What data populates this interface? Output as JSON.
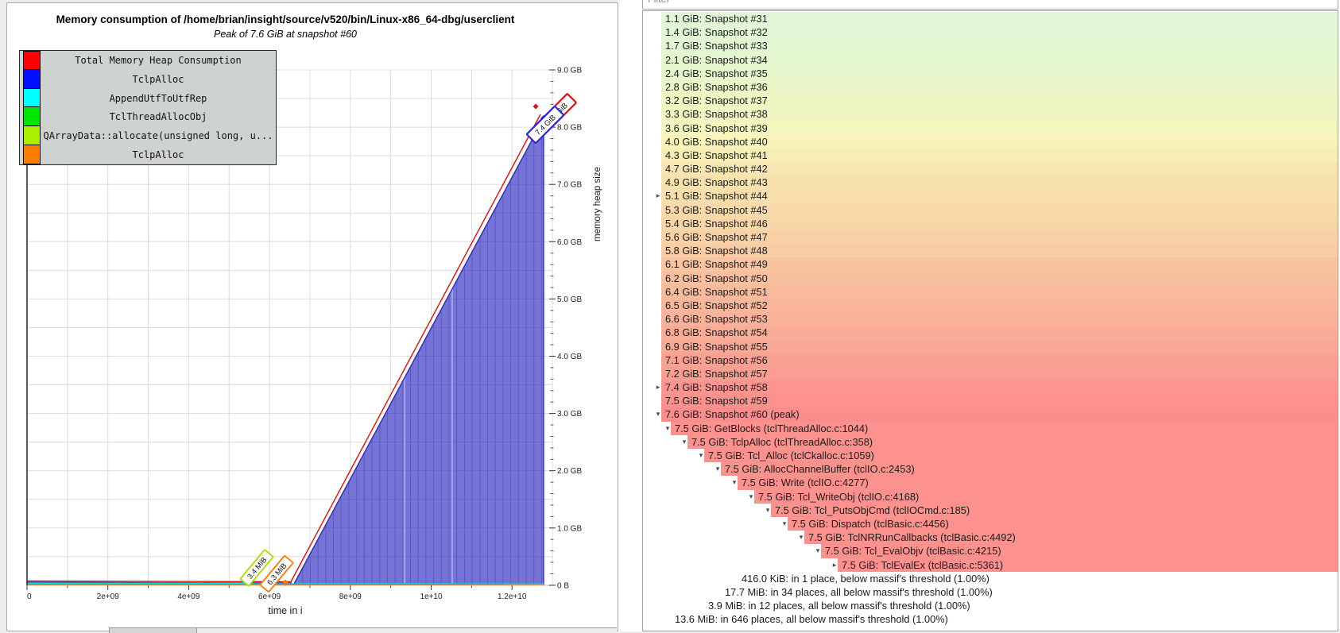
{
  "chart": {
    "title": "Memory consumption of /home/brian/insight/source/v520/bin/Linux-x86_64-dbg/userclient",
    "subtitle": "Peak of 7.6 GiB at snapshot #60",
    "x_axis": {
      "label": "time in i",
      "ticks": [
        "0",
        "2e+09",
        "4e+09",
        "6e+09",
        "8e+09",
        "1e+10",
        "1.2e+10"
      ]
    },
    "y_axis": {
      "label": "memory heap size",
      "ticks": [
        "9.0 GB",
        "8.0 GB",
        "7.0 GB",
        "6.0 GB",
        "5.0 GB",
        "4.0 GB",
        "3.0 GB",
        "2.0 GB",
        "1.0 GB",
        "0 B"
      ]
    },
    "legend": [
      {
        "label": "Total Memory Heap Consumption",
        "color": "#ff0000"
      },
      {
        "label": "TclpAlloc",
        "color": "#0010ff"
      },
      {
        "label": "AppendUtfToUtfRep",
        "color": "#00ffff"
      },
      {
        "label": "TclThreadAllocObj",
        "color": "#00e500"
      },
      {
        "label": "QArrayData::allocate(unsigned long, u...",
        "color": "#aaee00"
      },
      {
        "label": "TclpAlloc",
        "color": "#ff7d00"
      }
    ],
    "annotations": [
      {
        "text": "3.4 MiB",
        "color": "#a8e000"
      },
      {
        "text": "6.3 MiB",
        "color": "#ff7d00"
      },
      {
        "text": "7.4 GiB",
        "color": "#2828dd"
      },
      {
        "text": "7.6 GiB",
        "color": "#e01010"
      }
    ],
    "chart_data": {
      "type": "area",
      "title": "Memory consumption of /home/brian/insight/source/v520/bin/Linux-x86_64-dbg/userclient",
      "subtitle": "Peak of 7.6 GiB at snapshot #60",
      "xlabel": "time in i",
      "ylabel": "memory heap size",
      "x_ticks": [
        0,
        2000000000.0,
        4000000000.0,
        6000000000.0,
        8000000000.0,
        10000000000.0,
        12000000000.0
      ],
      "y_ticks_gb": [
        9.0,
        8.0,
        7.0,
        6.0,
        5.0,
        4.0,
        3.0,
        2.0,
        1.0,
        0
      ],
      "x_range": [
        0,
        12900000000.0
      ],
      "y_range_bytes": [
        0,
        9000000000.0
      ],
      "grid": true,
      "legend_position": "top-left",
      "peak": {
        "value": "7.6 GiB",
        "snapshot": 60
      },
      "series": [
        {
          "name": "Total Memory Heap Consumption",
          "color": "#ff0000",
          "points_approx": [
            [
              0,
              50000000.0
            ],
            [
              6500000000.0,
              60000000.0
            ],
            [
              12800000000.0,
              8160000000.0
            ]
          ]
        },
        {
          "name": "TclpAlloc",
          "color": "#0010ff",
          "filled": true,
          "points_approx": [
            [
              0,
              40000000.0
            ],
            [
              6500000000.0,
              50000000.0
            ],
            [
              12800000000.0,
              8100000000.0
            ]
          ]
        },
        {
          "name": "AppendUtfToUtfRep",
          "color": "#00ffff",
          "points_approx": [
            [
              0,
              15000000.0
            ],
            [
              5500000000.0,
              20000000.0
            ],
            [
              12800000000.0,
              15000000.0
            ]
          ],
          "marker_label": null
        },
        {
          "name": "TclThreadAllocObj",
          "color": "#00e500",
          "points_approx": [
            [
              0,
              8000000.0
            ],
            [
              12800000000.0,
              8000000.0
            ]
          ]
        },
        {
          "name": "QArrayData::allocate(unsigned long, u...",
          "color": "#aaee00",
          "points_approx": [
            [
              5800000000.0,
              3570000.0
            ]
          ],
          "marker_label": "3.4 MiB"
        },
        {
          "name": "TclpAlloc",
          "color": "#ff7d00",
          "points_approx": [
            [
              6200000000.0,
              6600000.0
            ]
          ],
          "marker_label": "6.3 MiB"
        }
      ]
    }
  },
  "filter": {
    "placeholder": "Filter"
  },
  "snapshot_tree": {
    "rows": [
      {
        "label": "1.1 GiB: Snapshot #31",
        "value": 1.1,
        "depth": 0,
        "arrow": "none",
        "kind": "snapshot"
      },
      {
        "label": "1.4 GiB: Snapshot #32",
        "value": 1.4,
        "depth": 0,
        "arrow": "none",
        "kind": "snapshot"
      },
      {
        "label": "1.7 GiB: Snapshot #33",
        "value": 1.7,
        "depth": 0,
        "arrow": "none",
        "kind": "snapshot"
      },
      {
        "label": "2.1 GiB: Snapshot #34",
        "value": 2.1,
        "depth": 0,
        "arrow": "none",
        "kind": "snapshot"
      },
      {
        "label": "2.4 GiB: Snapshot #35",
        "value": 2.4,
        "depth": 0,
        "arrow": "none",
        "kind": "snapshot"
      },
      {
        "label": "2.8 GiB: Snapshot #36",
        "value": 2.8,
        "depth": 0,
        "arrow": "none",
        "kind": "snapshot"
      },
      {
        "label": "3.2 GiB: Snapshot #37",
        "value": 3.2,
        "depth": 0,
        "arrow": "none",
        "kind": "snapshot"
      },
      {
        "label": "3.3 GiB: Snapshot #38",
        "value": 3.3,
        "depth": 0,
        "arrow": "none",
        "kind": "snapshot"
      },
      {
        "label": "3.6 GiB: Snapshot #39",
        "value": 3.6,
        "depth": 0,
        "arrow": "none",
        "kind": "snapshot"
      },
      {
        "label": "4.0 GiB: Snapshot #40",
        "value": 4.0,
        "depth": 0,
        "arrow": "none",
        "kind": "snapshot"
      },
      {
        "label": "4.3 GiB: Snapshot #41",
        "value": 4.3,
        "depth": 0,
        "arrow": "none",
        "kind": "snapshot"
      },
      {
        "label": "4.7 GiB: Snapshot #42",
        "value": 4.7,
        "depth": 0,
        "arrow": "none",
        "kind": "snapshot"
      },
      {
        "label": "4.9 GiB: Snapshot #43",
        "value": 4.9,
        "depth": 0,
        "arrow": "none",
        "kind": "snapshot"
      },
      {
        "label": "5.1 GiB: Snapshot #44",
        "value": 5.1,
        "depth": 0,
        "arrow": "collapsed",
        "kind": "snapshot"
      },
      {
        "label": "5.3 GiB: Snapshot #45",
        "value": 5.3,
        "depth": 0,
        "arrow": "none",
        "kind": "snapshot"
      },
      {
        "label": "5.4 GiB: Snapshot #46",
        "value": 5.4,
        "depth": 0,
        "arrow": "none",
        "kind": "snapshot"
      },
      {
        "label": "5.6 GiB: Snapshot #47",
        "value": 5.6,
        "depth": 0,
        "arrow": "none",
        "kind": "snapshot"
      },
      {
        "label": "5.8 GiB: Snapshot #48",
        "value": 5.8,
        "depth": 0,
        "arrow": "none",
        "kind": "snapshot"
      },
      {
        "label": "6.1 GiB: Snapshot #49",
        "value": 6.1,
        "depth": 0,
        "arrow": "none",
        "kind": "snapshot"
      },
      {
        "label": "6.2 GiB: Snapshot #50",
        "value": 6.2,
        "depth": 0,
        "arrow": "none",
        "kind": "snapshot"
      },
      {
        "label": "6.4 GiB: Snapshot #51",
        "value": 6.4,
        "depth": 0,
        "arrow": "none",
        "kind": "snapshot"
      },
      {
        "label": "6.5 GiB: Snapshot #52",
        "value": 6.5,
        "depth": 0,
        "arrow": "none",
        "kind": "snapshot"
      },
      {
        "label": "6.6 GiB: Snapshot #53",
        "value": 6.6,
        "depth": 0,
        "arrow": "none",
        "kind": "snapshot"
      },
      {
        "label": "6.8 GiB: Snapshot #54",
        "value": 6.8,
        "depth": 0,
        "arrow": "none",
        "kind": "snapshot"
      },
      {
        "label": "6.9 GiB: Snapshot #55",
        "value": 6.9,
        "depth": 0,
        "arrow": "none",
        "kind": "snapshot"
      },
      {
        "label": "7.1 GiB: Snapshot #56",
        "value": 7.1,
        "depth": 0,
        "arrow": "none",
        "kind": "snapshot"
      },
      {
        "label": "7.2 GiB: Snapshot #57",
        "value": 7.2,
        "depth": 0,
        "arrow": "none",
        "kind": "snapshot"
      },
      {
        "label": "7.4 GiB: Snapshot #58",
        "value": 7.4,
        "depth": 0,
        "arrow": "collapsed",
        "kind": "snapshot"
      },
      {
        "label": "7.5 GiB: Snapshot #59",
        "value": 7.5,
        "depth": 0,
        "arrow": "none",
        "kind": "snapshot"
      },
      {
        "label": "7.6 GiB: Snapshot #60 (peak)",
        "value": 7.6,
        "depth": 0,
        "arrow": "expanded",
        "kind": "snapshot"
      },
      {
        "label": "7.5 GiB: GetBlocks (tclThreadAlloc.c:1044)",
        "value": 7.5,
        "depth": 1,
        "arrow": "expanded",
        "kind": "frame"
      },
      {
        "label": "7.5 GiB: TclpAlloc (tclThreadAlloc.c:358)",
        "value": 7.5,
        "depth": 2,
        "arrow": "expanded",
        "kind": "frame"
      },
      {
        "label": "7.5 GiB: Tcl_Alloc (tclCkalloc.c:1059)",
        "value": 7.5,
        "depth": 3,
        "arrow": "expanded",
        "kind": "frame"
      },
      {
        "label": "7.5 GiB: AllocChannelBuffer (tclIO.c:2453)",
        "value": 7.5,
        "depth": 4,
        "arrow": "expanded",
        "kind": "frame"
      },
      {
        "label": "7.5 GiB: Write (tclIO.c:4277)",
        "value": 7.5,
        "depth": 5,
        "arrow": "expanded",
        "kind": "frame"
      },
      {
        "label": "7.5 GiB: Tcl_WriteObj (tclIO.c:4168)",
        "value": 7.5,
        "depth": 6,
        "arrow": "expanded",
        "kind": "frame"
      },
      {
        "label": "7.5 GiB: Tcl_PutsObjCmd (tclIOCmd.c:185)",
        "value": 7.5,
        "depth": 7,
        "arrow": "expanded",
        "kind": "frame"
      },
      {
        "label": "7.5 GiB: Dispatch (tclBasic.c:4456)",
        "value": 7.5,
        "depth": 8,
        "arrow": "expanded",
        "kind": "frame"
      },
      {
        "label": "7.5 GiB: TclNRRunCallbacks (tclBasic.c:4492)",
        "value": 7.5,
        "depth": 9,
        "arrow": "expanded",
        "kind": "frame"
      },
      {
        "label": "7.5 GiB: Tcl_EvalObjv (tclBasic.c:4215)",
        "value": 7.5,
        "depth": 10,
        "arrow": "expanded",
        "kind": "frame"
      },
      {
        "label": "7.5 GiB: TclEvalEx (tclBasic.c:5361)",
        "value": 7.5,
        "depth": 11,
        "arrow": "collapsed",
        "kind": "frame"
      },
      {
        "label": "416.0 KiB: in 1 place, below massif's threshold (1.00%)",
        "value": null,
        "depth": 5,
        "arrow": "none",
        "kind": "threshold"
      },
      {
        "label": "17.7 MiB: in 34 places, all below massif's threshold (1.00%)",
        "value": null,
        "depth": 4,
        "arrow": "none",
        "kind": "threshold"
      },
      {
        "label": "3.9 MiB: in 12 places, all below massif's threshold (1.00%)",
        "value": null,
        "depth": 3,
        "arrow": "none",
        "kind": "threshold"
      },
      {
        "label": "13.6 MiB: in 646 places, all below massif's threshold (1.00%)",
        "value": null,
        "depth": 1,
        "arrow": "none",
        "kind": "threshold"
      }
    ]
  }
}
